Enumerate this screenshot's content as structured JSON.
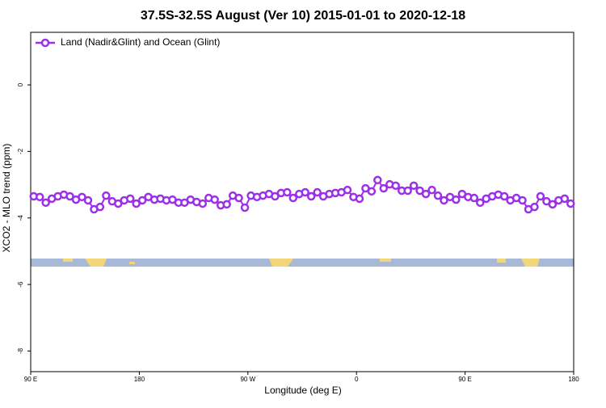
{
  "chart_data": {
    "type": "line",
    "title": "37.5S-32.5S August (Ver 10)   2015-01-01 to 2020-12-18",
    "x_label": "Longitude (deg E)",
    "y_label": "XCO2 - MLO trend (ppm)",
    "xlim": [
      90,
      540
    ],
    "ylim": [
      -8.62,
      1.58
    ],
    "xticks": [
      {
        "value": 90,
        "label": "90 E"
      },
      {
        "value": 180,
        "label": "180"
      },
      {
        "value": 270,
        "label": "90 W"
      },
      {
        "value": 360,
        "label": "0"
      },
      {
        "value": 450,
        "label": "90 E"
      },
      {
        "value": 540,
        "label": "180"
      }
    ],
    "yticks": [
      0,
      -2,
      -4,
      -6,
      -8
    ],
    "legend_position": "top-left",
    "series": [
      {
        "name": "Land (Nadir&Glint) and Ocean (Glint)",
        "color": "#9b30e8",
        "x": [
          92.5,
          97.5,
          102.5,
          107.5,
          112.5,
          117.5,
          122.5,
          127.5,
          132.5,
          137.5,
          142.5,
          147.5,
          152.5,
          157.5,
          162.5,
          167.5,
          172.5,
          177.5,
          182.5,
          187.5,
          192.5,
          197.5,
          202.5,
          207.5,
          212.5,
          217.5,
          222.5,
          227.5,
          232.5,
          237.5,
          242.5,
          247.5,
          252.5,
          257.5,
          262.5,
          267.5,
          272.5,
          277.5,
          282.5,
          287.5,
          292.5,
          297.5,
          302.5,
          307.5,
          312.5,
          317.5,
          322.5,
          327.5,
          332.5,
          337.5,
          342.5,
          347.5,
          352.5,
          357.5,
          362.5,
          367.5,
          372.5,
          377.5,
          382.5,
          387.5,
          392.5,
          397.5,
          402.5,
          407.5,
          412.5,
          417.5,
          422.5,
          427.5,
          432.5,
          437.5,
          442.5,
          447.5,
          452.5,
          457.5,
          462.5,
          467.5,
          472.5,
          477.5,
          482.5,
          487.5,
          492.5,
          497.5,
          502.5,
          507.5,
          512.5,
          517.5,
          522.5,
          527.5,
          532.5,
          537.5
        ],
        "values": [
          -3.35,
          -3.37,
          -3.54,
          -3.42,
          -3.35,
          -3.3,
          -3.35,
          -3.45,
          -3.37,
          -3.47,
          -3.74,
          -3.67,
          -3.33,
          -3.5,
          -3.57,
          -3.47,
          -3.42,
          -3.57,
          -3.47,
          -3.37,
          -3.45,
          -3.42,
          -3.47,
          -3.45,
          -3.54,
          -3.54,
          -3.45,
          -3.52,
          -3.57,
          -3.4,
          -3.45,
          -3.62,
          -3.59,
          -3.33,
          -3.4,
          -3.69,
          -3.33,
          -3.37,
          -3.33,
          -3.28,
          -3.35,
          -3.25,
          -3.23,
          -3.4,
          -3.28,
          -3.23,
          -3.35,
          -3.23,
          -3.35,
          -3.28,
          -3.25,
          -3.23,
          -3.16,
          -3.37,
          -3.42,
          -3.11,
          -3.2,
          -2.86,
          -3.11,
          -2.99,
          -3.03,
          -3.18,
          -3.18,
          -3.03,
          -3.18,
          -3.28,
          -3.16,
          -3.33,
          -3.47,
          -3.37,
          -3.45,
          -3.28,
          -3.37,
          -3.4,
          -3.54,
          -3.42,
          -3.35,
          -3.3,
          -3.35,
          -3.47,
          -3.4,
          -3.47,
          -3.74,
          -3.67,
          -3.35,
          -3.5,
          -3.59,
          -3.47,
          -3.42,
          -3.57
        ]
      }
    ]
  }
}
